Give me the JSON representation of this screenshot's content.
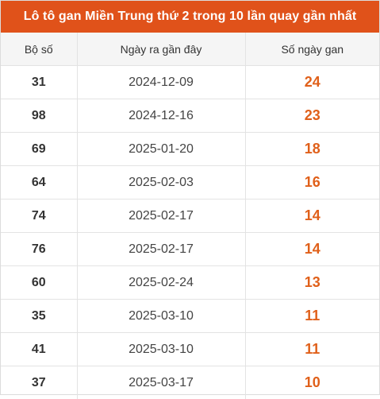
{
  "title": "Lô tô gan Miền Trung thứ 2 trong 10 lần quay gần nhất",
  "headers": {
    "col1": "Bộ số",
    "col2": "Ngày ra gần đây",
    "col3": "Số ngày gan"
  },
  "rows": [
    {
      "number": "31",
      "date": "2024-12-09",
      "days": "24"
    },
    {
      "number": "98",
      "date": "2024-12-16",
      "days": "23"
    },
    {
      "number": "69",
      "date": "2025-01-20",
      "days": "18"
    },
    {
      "number": "64",
      "date": "2025-02-03",
      "days": "16"
    },
    {
      "number": "74",
      "date": "2025-02-17",
      "days": "14"
    },
    {
      "number": "76",
      "date": "2025-02-17",
      "days": "14"
    },
    {
      "number": "60",
      "date": "2025-02-24",
      "days": "13"
    },
    {
      "number": "35",
      "date": "2025-03-10",
      "days": "11"
    },
    {
      "number": "41",
      "date": "2025-03-10",
      "days": "11"
    },
    {
      "number": "37",
      "date": "2025-03-17",
      "days": "10"
    }
  ],
  "colors": {
    "header_bg": "#e0521a",
    "days_text": "#e0601a"
  }
}
